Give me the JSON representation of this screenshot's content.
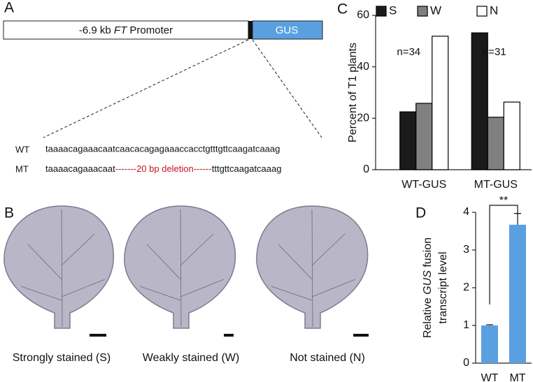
{
  "panel_a": {
    "letter": "A",
    "promoter": [
      "-6.9 kb ",
      "FT",
      " Promoter"
    ],
    "reporter": "GUS",
    "wt_label": "WT",
    "wt_sequence": "taaaacagaaacaatcaacacagagaaaccacctgtttgttcaagatcaaag",
    "mt_label": "MT",
    "mt_sequence": [
      "taaaacagaaacaat",
      "-------20 bp deletion------",
      "tttgttcaagatcaaag"
    ]
  },
  "panel_b": {
    "letter": "B",
    "captions": [
      "Strongly stained (S)",
      "Weakly stained (W)",
      "Not stained (N)"
    ]
  },
  "panel_c": {
    "letter": "C"
  },
  "panel_d": {
    "letter": "D",
    "ylabel": [
      "Relative ",
      "GUS",
      " fusion",
      "transcript level"
    ]
  },
  "chart_data": [
    {
      "type": "grouped_bar",
      "ylabel": "Percent of T1 plants",
      "categories": [
        "WT-GUS",
        "MT-GUS"
      ],
      "series": [
        {
          "name": "S",
          "color": "#1a1a1a",
          "values": [
            22.5,
            53.2
          ]
        },
        {
          "name": "W",
          "color": "#808080",
          "values": [
            25.8,
            20.4
          ]
        },
        {
          "name": "N",
          "color": "#ffffff",
          "values": [
            51.9,
            26.3
          ]
        }
      ],
      "edgecolor": "#000000",
      "annotations": [
        "n=34",
        "n=31"
      ],
      "ylim": [
        0,
        60
      ],
      "yticks": [
        0,
        20,
        40,
        60
      ]
    },
    {
      "type": "bar",
      "categories": [
        "WT",
        "MT"
      ],
      "values": [
        1.0,
        3.67
      ],
      "errors": [
        0.02,
        0.3
      ],
      "color": "#5aa0e0",
      "significance": "**",
      "ylim": [
        0,
        4
      ],
      "yticks": [
        0,
        1,
        2,
        3,
        4
      ]
    }
  ]
}
